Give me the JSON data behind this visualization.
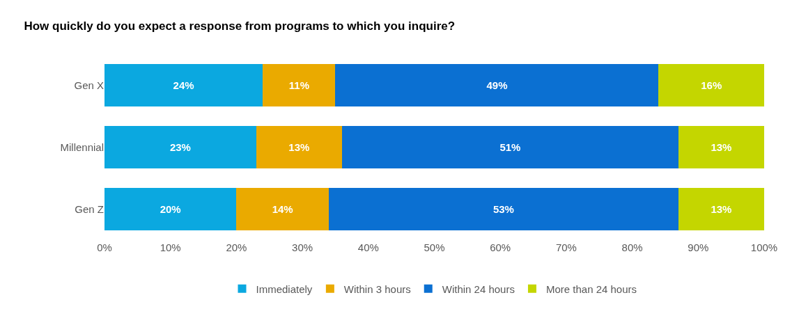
{
  "chart_data": {
    "type": "bar",
    "orientation": "horizontal",
    "stacked": true,
    "title": "How quickly do you expect a response from programs to which you inquire?",
    "categories": [
      "Gen X",
      "Millennial",
      "Gen Z"
    ],
    "series": [
      {
        "name": "Immediately",
        "color": "#0ba8e0",
        "values": [
          24,
          23,
          20
        ],
        "value_labels": [
          "24%",
          "23%",
          "20%"
        ]
      },
      {
        "name": "Within 3 hours",
        "color": "#eaaa00",
        "values": [
          11,
          13,
          14
        ],
        "value_labels": [
          "11%",
          "13%",
          "14%"
        ]
      },
      {
        "name": "Within 24 hours",
        "color": "#0b70d2",
        "values": [
          49,
          51,
          53
        ],
        "value_labels": [
          "49%",
          "51%",
          "53%"
        ]
      },
      {
        "name": "More than 24 hours",
        "color": "#c4d600",
        "values": [
          16,
          13,
          13
        ],
        "value_labels": [
          "16%",
          "13%",
          "13%"
        ]
      }
    ],
    "xlim": [
      0,
      100
    ],
    "xticks": [
      {
        "value": 0,
        "label": "0%"
      },
      {
        "value": 10,
        "label": "10%"
      },
      {
        "value": 20,
        "label": "20%"
      },
      {
        "value": 30,
        "label": "30%"
      },
      {
        "value": 40,
        "label": "40%"
      },
      {
        "value": 50,
        "label": "50%"
      },
      {
        "value": 60,
        "label": "60%"
      },
      {
        "value": 70,
        "label": "70%"
      },
      {
        "value": 80,
        "label": "80%"
      },
      {
        "value": 90,
        "label": "90%"
      },
      {
        "value": 100,
        "label": "100%"
      }
    ],
    "legend": "bottom"
  }
}
